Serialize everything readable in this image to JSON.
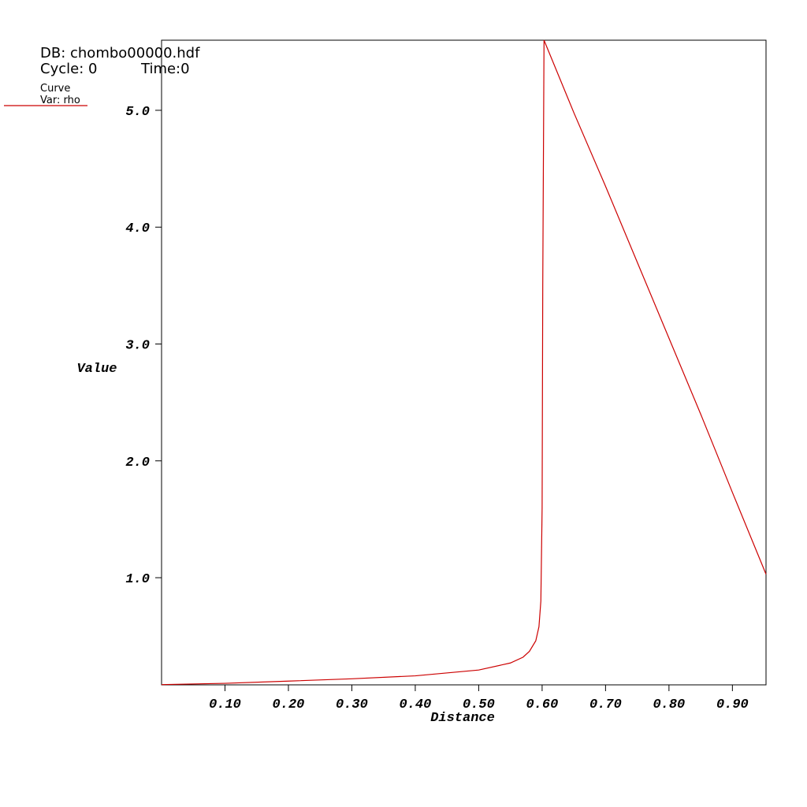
{
  "chart_data": {
    "type": "line",
    "annotations": [
      "DB: chombo00000.hdf",
      "Cycle: 0",
      "Time:0"
    ],
    "legend_title": "Curve",
    "x_label": "Distance",
    "y_label": "Value",
    "x": [
      0,
      0.1,
      0.2,
      0.3,
      0.4,
      0.5,
      0.55,
      0.57,
      0.58,
      0.59,
      0.595,
      0.598,
      0.6,
      0.601,
      0.603,
      0.65,
      0.7,
      0.75,
      0.8,
      0.85,
      0.9,
      0.953
    ],
    "series": [
      {
        "name": "Var: rho",
        "color": "#cc0000",
        "values": [
          0.085,
          0.096,
          0.115,
          0.135,
          0.16,
          0.21,
          0.27,
          0.32,
          0.37,
          0.46,
          0.58,
          0.8,
          1.6,
          3.5,
          5.6,
          4.98,
          4.35,
          3.7,
          3.05,
          2.4,
          1.73,
          1.03
        ]
      }
    ],
    "xlim": [
      0,
      0.953
    ],
    "ylim": [
      0.083,
      5.6
    ],
    "xticks": [
      {
        "value": 0.1,
        "label": "0.10"
      },
      {
        "value": 0.2,
        "label": "0.20"
      },
      {
        "value": 0.3,
        "label": "0.30"
      },
      {
        "value": 0.4,
        "label": "0.40"
      },
      {
        "value": 0.5,
        "label": "0.50"
      },
      {
        "value": 0.6,
        "label": "0.60"
      },
      {
        "value": 0.7,
        "label": "0.70"
      },
      {
        "value": 0.8,
        "label": "0.80"
      },
      {
        "value": 0.9,
        "label": "0.90"
      }
    ],
    "yticks": [
      {
        "value": 1,
        "label": "1.0"
      },
      {
        "value": 2,
        "label": "2.0"
      },
      {
        "value": 3,
        "label": "3.0"
      },
      {
        "value": 4,
        "label": "4.0"
      },
      {
        "value": 5,
        "label": "5.0"
      }
    ],
    "grid": false
  }
}
